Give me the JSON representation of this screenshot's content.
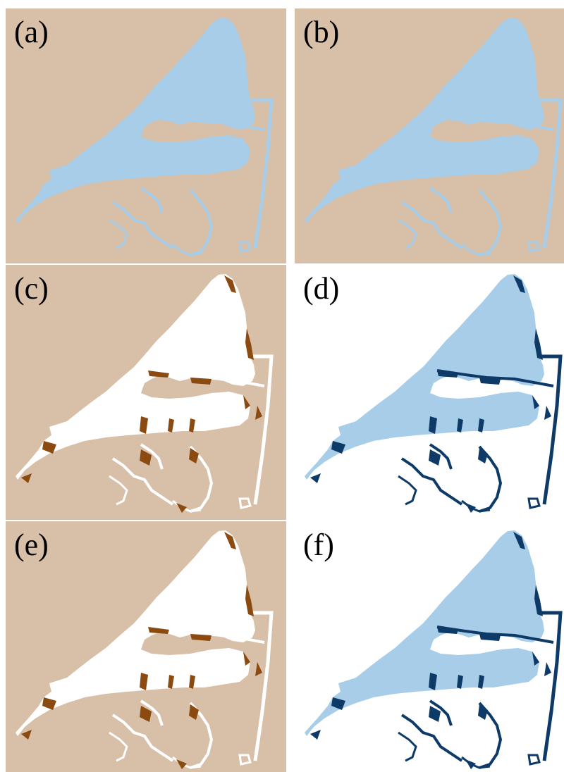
{
  "panels": [
    {
      "label": "(a)",
      "background": "#d8bfa7",
      "water": "#a7cde8",
      "channel_color": "#a7cde8",
      "highlight": null
    },
    {
      "label": "(b)",
      "background": "#d8bfa7",
      "water": "#a7cde8",
      "channel_color": "#a7cde8",
      "highlight": null
    },
    {
      "label": "(c)",
      "background": "#d8bfa7",
      "water": "#ffffff",
      "channel_color": "#ffffff",
      "highlight": "#8b4a10"
    },
    {
      "label": "(d)",
      "background": "#ffffff",
      "water": "#a7cde8",
      "channel_color": "#0e3a68",
      "highlight": "#0e3a68"
    },
    {
      "label": "(e)",
      "background": "#d8bfa7",
      "water": "#ffffff",
      "channel_color": "#ffffff",
      "highlight": "#8b4a10"
    },
    {
      "label": "(f)",
      "background": "#ffffff",
      "water": "#a7cde8",
      "channel_color": "#0e3a68",
      "highlight": "#0e3a68"
    }
  ]
}
